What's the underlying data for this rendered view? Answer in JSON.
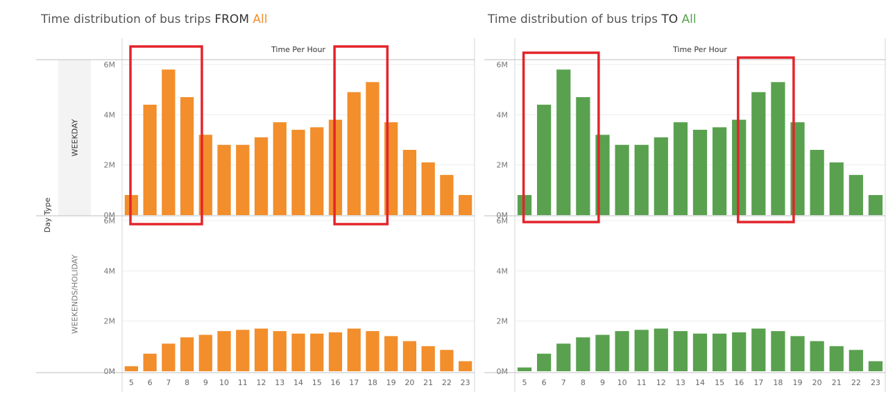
{
  "panels": [
    {
      "title_prefix": "Time distribution of bus trips ",
      "direction": "FROM",
      "filter": "All",
      "filter_color": "#f28e2b",
      "bar_color": "#f28e2b"
    },
    {
      "title_prefix": "Time distribution of bus trips ",
      "direction": "TO",
      "filter": "All",
      "filter_color": "#59a14f",
      "bar_color": "#59a14f"
    }
  ],
  "highlight_color": "#e3242b",
  "chart_data": [
    {
      "type": "bar",
      "title": "Time distribution of bus trips FROM All",
      "column_header": "Time Per Hour",
      "row_header": "Day Type",
      "rows": [
        "WEEKDAY",
        "WEEKENDS/HOLIDAY"
      ],
      "categories": [
        "5",
        "6",
        "7",
        "8",
        "9",
        "10",
        "11",
        "12",
        "13",
        "14",
        "15",
        "16",
        "17",
        "18",
        "19",
        "20",
        "21",
        "22",
        "23"
      ],
      "series": [
        {
          "name": "WEEKDAY",
          "values": [
            0.8,
            4.4,
            5.8,
            4.7,
            3.2,
            2.8,
            2.8,
            3.1,
            3.7,
            3.4,
            3.5,
            3.8,
            4.9,
            5.3,
            3.7,
            2.6,
            2.1,
            1.6,
            0.8
          ]
        },
        {
          "name": "WEEKENDS/HOLIDAY",
          "values": [
            0.2,
            0.7,
            1.1,
            1.35,
            1.45,
            1.6,
            1.65,
            1.7,
            1.6,
            1.5,
            1.5,
            1.55,
            1.7,
            1.6,
            1.4,
            1.2,
            1.0,
            0.85,
            0.4
          ]
        }
      ],
      "y_ticks": [
        "0M",
        "2M",
        "4M",
        "6M"
      ],
      "ylim": [
        0,
        6.3
      ],
      "highlight_ranges": [
        [
          "6",
          "8"
        ],
        [
          "17",
          "18"
        ]
      ],
      "grid": true
    },
    {
      "type": "bar",
      "title": "Time distribution of bus trips TO All",
      "column_header": "Time Per Hour",
      "row_header": "",
      "rows": [
        "WEEKDAY",
        "WEEKENDS/HOLIDAY"
      ],
      "categories": [
        "5",
        "6",
        "7",
        "8",
        "9",
        "10",
        "11",
        "12",
        "13",
        "14",
        "15",
        "16",
        "17",
        "18",
        "19",
        "20",
        "21",
        "22",
        "23"
      ],
      "series": [
        {
          "name": "WEEKDAY",
          "values": [
            0.8,
            4.4,
            5.8,
            4.7,
            3.2,
            2.8,
            2.8,
            3.1,
            3.7,
            3.4,
            3.5,
            3.8,
            4.9,
            5.3,
            3.7,
            2.6,
            2.1,
            1.6,
            0.8
          ]
        },
        {
          "name": "WEEKENDS/HOLIDAY",
          "values": [
            0.15,
            0.7,
            1.1,
            1.35,
            1.45,
            1.6,
            1.65,
            1.7,
            1.6,
            1.5,
            1.5,
            1.55,
            1.7,
            1.6,
            1.4,
            1.2,
            1.0,
            0.85,
            0.4
          ]
        }
      ],
      "y_ticks": [
        "0M",
        "2M",
        "4M",
        "6M"
      ],
      "ylim": [
        0,
        6.3
      ],
      "highlight_ranges": [
        [
          "6",
          "8"
        ],
        [
          "17",
          "18"
        ]
      ],
      "grid": true
    }
  ]
}
